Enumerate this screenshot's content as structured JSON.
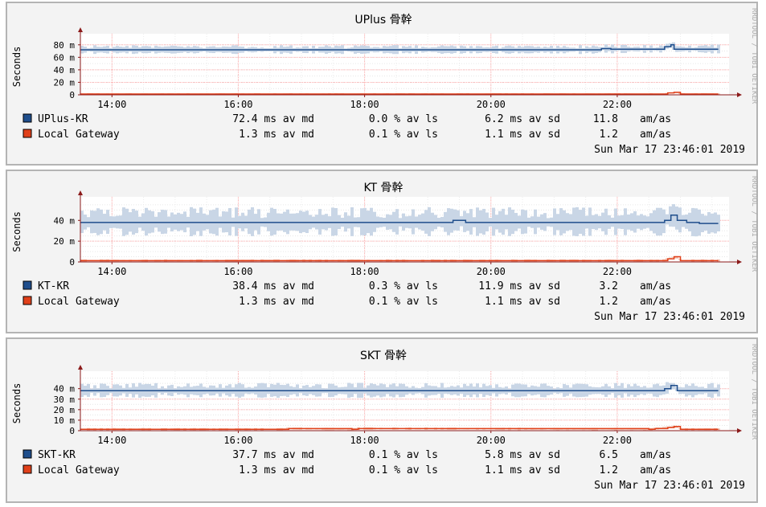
{
  "colors": {
    "background": "#f3f3f3",
    "plot": "#ffffff",
    "smoke": "#c9d6e6",
    "main_line": "#1f4e8c",
    "gateway_line": "#e0401a",
    "axis": "#8b1a1a",
    "grid": "#ffaaaa"
  },
  "panels": [
    {
      "title": "UPlus 骨幹",
      "ylabel": "Seconds",
      "side_label": "RRDTOOL / TOBI OETIKER",
      "timestamp": "Sun Mar 17 23:46:01 2019",
      "legend": [
        {
          "name": "UPlus-KR",
          "color": "#1f4e8c",
          "avg": "72.4 ms av md",
          "loss": "0.0 % av ls",
          "sd": "6.2 ms av sd",
          "amas": "11.8",
          "unit": "am/as"
        },
        {
          "name": "Local Gateway",
          "color": "#e0401a",
          "avg": "1.3 ms av md",
          "loss": "0.1 % av ls",
          "sd": "1.1 ms av sd",
          "amas": "1.2",
          "unit": "am/as"
        }
      ]
    },
    {
      "title": "KT 骨幹",
      "ylabel": "Seconds",
      "side_label": "RRDTOOL / TOBI OETIKER",
      "timestamp": "Sun Mar 17 23:46:01 2019",
      "legend": [
        {
          "name": "KT-KR",
          "color": "#1f4e8c",
          "avg": "38.4 ms av md",
          "loss": "0.3 % av ls",
          "sd": "11.9 ms av sd",
          "amas": "3.2",
          "unit": "am/as"
        },
        {
          "name": "Local Gateway",
          "color": "#e0401a",
          "avg": "1.3 ms av md",
          "loss": "0.1 % av ls",
          "sd": "1.1 ms av sd",
          "amas": "1.2",
          "unit": "am/as"
        }
      ]
    },
    {
      "title": "SKT 骨幹",
      "ylabel": "Seconds",
      "side_label": "RRDTOOL / TOBI OETIKER",
      "timestamp": "Sun Mar 17 23:46:01 2019",
      "legend": [
        {
          "name": "SKT-KR",
          "color": "#1f4e8c",
          "avg": "37.7 ms av md",
          "loss": "0.1 % av ls",
          "sd": "5.8 ms av sd",
          "amas": "6.5",
          "unit": "am/as"
        },
        {
          "name": "Local Gateway",
          "color": "#e0401a",
          "avg": "1.3 ms av md",
          "loss": "0.1 % av ls",
          "sd": "1.1 ms av sd",
          "amas": "1.2",
          "unit": "am/as"
        }
      ]
    }
  ],
  "chart_data": [
    {
      "type": "line",
      "title": "UPlus 骨幹",
      "ylabel": "Seconds",
      "x_range_hours": [
        13.5,
        23.77
      ],
      "x_ticks": [
        "14:00",
        "16:00",
        "18:00",
        "20:00",
        "22:00"
      ],
      "y_ticks": [
        "0",
        "20 m",
        "40 m",
        "60 m",
        "80 m"
      ],
      "ylim_ms": [
        0,
        90
      ],
      "grid": true,
      "series": [
        {
          "name": "UPlus-KR",
          "x": [
            13.5,
            19.5,
            21.7,
            21.75,
            21.9,
            22.7,
            22.75,
            22.85,
            22.9,
            23.6
          ],
          "y_ms": [
            72,
            72,
            72,
            74,
            73,
            73,
            77,
            80,
            73,
            73
          ],
          "smoke_ms": 6
        },
        {
          "name": "Local Gateway",
          "x": [
            13.5,
            22.7,
            22.8,
            22.9,
            23.0,
            23.6
          ],
          "y_ms": [
            1.3,
            1.3,
            3,
            4,
            1.3,
            1.3
          ],
          "smoke_ms": 1
        }
      ]
    },
    {
      "type": "line",
      "title": "KT 骨幹",
      "ylabel": "Seconds",
      "x_range_hours": [
        13.5,
        23.77
      ],
      "x_ticks": [
        "14:00",
        "16:00",
        "18:00",
        "20:00",
        "22:00"
      ],
      "y_ticks": [
        "0",
        "20 m",
        "40 m"
      ],
      "ylim_ms": [
        0,
        58
      ],
      "grid": true,
      "series": [
        {
          "name": "KT-KR",
          "x": [
            13.5,
            19.3,
            19.4,
            19.6,
            22.7,
            22.75,
            22.85,
            22.95,
            23.1,
            23.3,
            23.6
          ],
          "y_ms": [
            38,
            38,
            40,
            38,
            38,
            40,
            45,
            40,
            38,
            37,
            37
          ],
          "smoke_ms": 12
        },
        {
          "name": "Local Gateway",
          "x": [
            13.5,
            22.7,
            22.8,
            22.9,
            23.0,
            23.6
          ],
          "y_ms": [
            1.3,
            1.3,
            3,
            5,
            1.3,
            1.3
          ],
          "smoke_ms": 1
        }
      ]
    },
    {
      "type": "line",
      "title": "SKT 骨幹",
      "ylabel": "Seconds",
      "x_range_hours": [
        13.5,
        23.77
      ],
      "x_ticks": [
        "14:00",
        "16:00",
        "18:00",
        "20:00",
        "22:00"
      ],
      "y_ticks": [
        "0",
        "10 m",
        "20 m",
        "30 m",
        "40 m"
      ],
      "ylim_ms": [
        0,
        52
      ],
      "grid": true,
      "series": [
        {
          "name": "SKT-KR",
          "x": [
            13.5,
            22.7,
            22.75,
            22.85,
            22.95,
            23.6
          ],
          "y_ms": [
            38,
            38,
            40,
            43,
            38,
            38
          ],
          "smoke_ms": 6
        },
        {
          "name": "Local Gateway",
          "x": [
            13.5,
            16.7,
            16.8,
            17.8,
            17.9,
            22.5,
            22.6,
            22.8,
            22.9,
            23.0,
            23.6
          ],
          "y_ms": [
            1.3,
            1.3,
            2,
            1.3,
            2,
            1.3,
            2,
            3,
            4,
            1.3,
            1.3
          ],
          "smoke_ms": 1
        }
      ]
    }
  ]
}
